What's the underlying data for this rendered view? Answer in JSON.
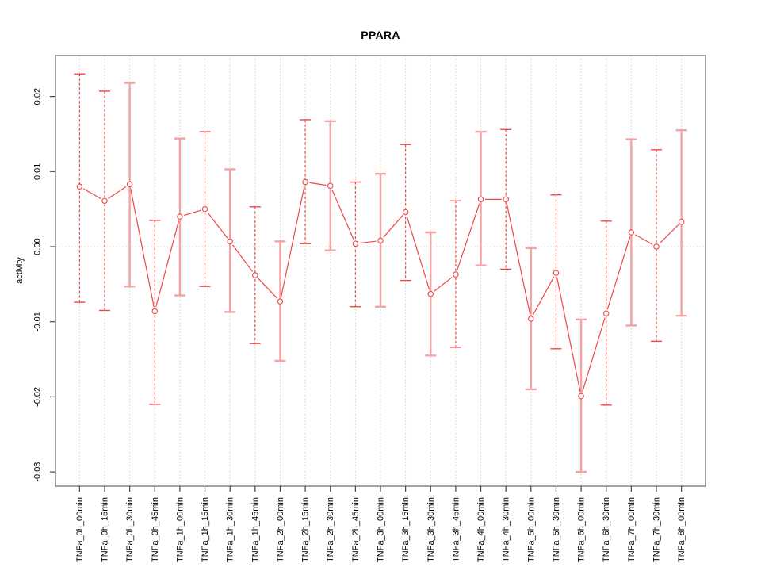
{
  "chart_data": {
    "type": "line",
    "title": "PPARA",
    "xlabel": "",
    "ylabel": "activity",
    "grid": "vertical dotted line at every category; horizontal dotted line at y=0",
    "legend": "none",
    "ylim": [
      -0.032,
      0.0254
    ],
    "yticks": [
      0.02,
      0.01,
      0,
      -0.01,
      -0.02,
      -0.03
    ],
    "ytick_labels": [
      "0.02",
      "0.01",
      "0.00",
      "-0.01",
      "-0.02",
      "-0.03"
    ],
    "categories": [
      "TNFa_0h_00min",
      "TNFa_0h_15min",
      "TNFa_0h_30min",
      "TNFa_0h_45min",
      "TNFa_1h_00min",
      "TNFa_1h_15min",
      "TNFa_1h_30min",
      "TNFa_1h_45min",
      "TNFa_2h_00min",
      "TNFa_2h_15min",
      "TNFa_2h_30min",
      "TNFa_2h_45min",
      "TNFa_3h_00min",
      "TNFa_3h_15min",
      "TNFa_3h_30min",
      "TNFa_3h_45min",
      "TNFa_4h_00min",
      "TNFa_4h_30min",
      "TNFa_5h_00min",
      "TNFa_5h_30min",
      "TNFa_6h_00min",
      "TNFa_6h_30min",
      "TNFa_7h_00min",
      "TNFa_7h_30min",
      "TNFa_8h_00min"
    ],
    "series": [
      {
        "name": "activity",
        "values": [
          0.008,
          0.0061,
          0.0083,
          -0.0086,
          0.004,
          0.005,
          0.0007,
          -0.0038,
          -0.0073,
          0.0086,
          0.0081,
          0.0004,
          0.0008,
          0.0046,
          -0.0063,
          -0.0037,
          0.0063,
          0.0063,
          -0.0096,
          -0.0035,
          -0.0199,
          -0.0089,
          0.0019,
          0.0,
          0.0033
        ],
        "upper": [
          0.023,
          0.0207,
          0.0218,
          0.0035,
          0.0144,
          0.0153,
          0.0103,
          0.0053,
          0.0007,
          0.0169,
          0.0167,
          0.0086,
          0.0097,
          0.0136,
          0.0019,
          0.0061,
          0.0153,
          0.0156,
          -0.0002,
          0.0069,
          -0.0097,
          0.0034,
          0.0143,
          0.0129,
          0.0155
        ],
        "lower": [
          -0.0074,
          -0.0085,
          -0.0053,
          -0.021,
          -0.0065,
          -0.0053,
          -0.0087,
          -0.0129,
          -0.0152,
          0.0004,
          -0.0005,
          -0.008,
          -0.008,
          -0.0045,
          -0.0145,
          -0.0134,
          -0.0025,
          -0.003,
          -0.019,
          -0.0136,
          -0.03,
          -0.0211,
          -0.0105,
          -0.0126,
          -0.0092
        ]
      }
    ],
    "bar_styles": [
      "dashed",
      "dashed",
      "solid",
      "dashed",
      "solid",
      "dashed",
      "solid",
      "dashed",
      "solid",
      "dashed",
      "solid",
      "dashed",
      "solid",
      "dashed",
      "solid",
      "dashed",
      "solid",
      "dashed",
      "solid",
      "dashed",
      "solid",
      "dashed",
      "solid",
      "dashed",
      "solid"
    ],
    "colors": {
      "series": "#ee4747",
      "error_bar_solid": "#f5a2a2",
      "grid": "#cdcdcd",
      "frame": "#8c8c8c",
      "tick": "#444444",
      "text": "#000000"
    }
  }
}
